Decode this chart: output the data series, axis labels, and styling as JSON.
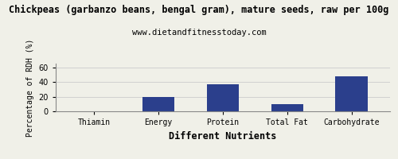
{
  "title": "Chickpeas (garbanzo beans, bengal gram), mature seeds, raw per 100g",
  "subtitle": "www.dietandfitnesstoday.com",
  "categories": [
    "Thiamin",
    "Energy",
    "Protein",
    "Total Fat",
    "Carbohydrate"
  ],
  "values": [
    0.4,
    19.0,
    37.0,
    10.0,
    48.0
  ],
  "bar_color": "#2b3f8c",
  "ylabel": "Percentage of RDH (%)",
  "xlabel": "Different Nutrients",
  "ylim": [
    0,
    65
  ],
  "yticks": [
    0,
    20,
    40,
    60
  ],
  "background_color": "#f0f0e8",
  "title_fontsize": 8.5,
  "subtitle_fontsize": 7.5,
  "axis_label_fontsize": 7,
  "tick_fontsize": 7,
  "xlabel_fontsize": 8.5,
  "grid_color": "#cccccc",
  "border_color": "#888888"
}
